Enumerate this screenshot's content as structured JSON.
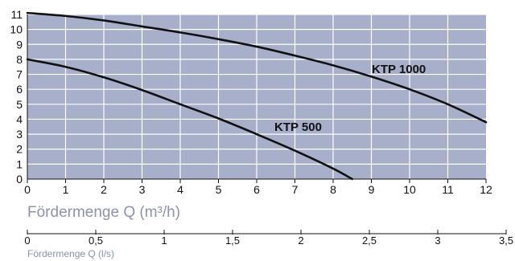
{
  "chart_data": {
    "type": "line",
    "xlabel": "Fördermenge Q (m³/h)",
    "xlim": [
      0,
      12
    ],
    "ylim": [
      0,
      11
    ],
    "x_ticks": [
      "0",
      "1",
      "2",
      "3",
      "4",
      "5",
      "6",
      "7",
      "8",
      "9",
      "10",
      "11",
      "12"
    ],
    "y_ticks": [
      "0",
      "1",
      "2",
      "3",
      "4",
      "5",
      "6",
      "7",
      "8",
      "9",
      "10",
      "11"
    ],
    "grid": true,
    "secondary_x_axis": {
      "xlabel": "Fördermenge Q (l/s)",
      "xlim": [
        0,
        3.5
      ],
      "ticks": [
        "0",
        "0,5",
        "1",
        "1,5",
        "2",
        "2,5",
        "3",
        "3,5"
      ]
    },
    "series": [
      {
        "name": "KTP 1000",
        "x": [
          0,
          1,
          2,
          3,
          4,
          5,
          6,
          7,
          8,
          9,
          10,
          11,
          12
        ],
        "y": [
          11.1,
          10.9,
          10.6,
          10.2,
          9.8,
          9.35,
          8.85,
          8.25,
          7.6,
          6.85,
          6.0,
          5.0,
          3.8
        ]
      },
      {
        "name": "KTP 500",
        "x": [
          0,
          1,
          2,
          3,
          4,
          5,
          6,
          7,
          8,
          8.5
        ],
        "y": [
          8.0,
          7.5,
          6.8,
          5.95,
          5.0,
          4.05,
          3.0,
          1.9,
          0.7,
          0.0
        ]
      }
    ],
    "colors": {
      "plot_background": "#a8afca",
      "grid": "#ffffff",
      "curve": "#111111",
      "axis_title": "#8c93ad"
    }
  }
}
